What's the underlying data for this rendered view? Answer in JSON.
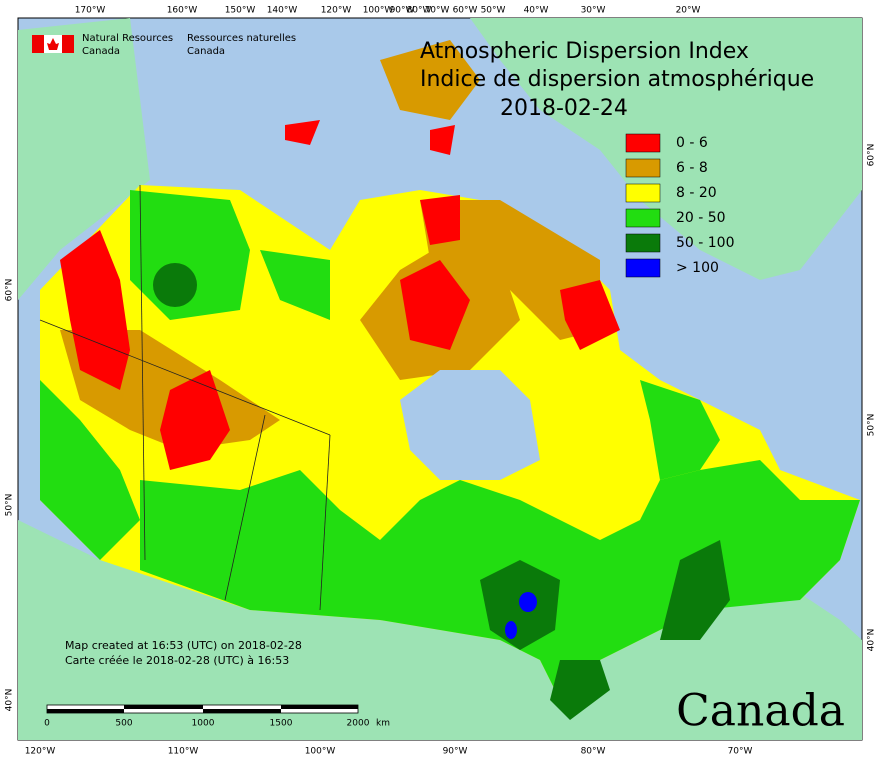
{
  "header": {
    "title": "Atmospheric Dispersion Index",
    "title_fr": "Indice de dispersion atmosphérique",
    "date": "2018-02-24"
  },
  "org": {
    "en_1": "Natural Resources",
    "en_2": "Canada",
    "fr_1": "Ressources naturelles",
    "fr_2": "Canada"
  },
  "legend": [
    {
      "label": "0 - 6",
      "color": "#ff0000"
    },
    {
      "label": "6 - 8",
      "color": "#d89a00"
    },
    {
      "label": "8 - 20",
      "color": "#ffff00"
    },
    {
      "label": "20 - 50",
      "color": "#22dd11"
    },
    {
      "label": "50 - 100",
      "color": "#0a7a0a"
    },
    {
      "label": "> 100",
      "color": "#0000ff"
    }
  ],
  "top_ticks": [
    "170°W",
    "160°W",
    "150°W",
    "140°W",
    "120°W",
    "100°W",
    "90°W",
    "80°W",
    "70°W",
    "60°W",
    "50°W",
    "40°W",
    "30°W",
    "20°W"
  ],
  "bottom_ticks": [
    "120°W",
    "110°W",
    "100°W",
    "90°W",
    "80°W",
    "70°W"
  ],
  "left_ticks": [
    "60°N",
    "50°N",
    "40°N"
  ],
  "right_ticks": [
    "60°N",
    "50°N",
    "40°N"
  ],
  "notes": {
    "created_en": "Map created at 16:53 (UTC) on 2018-02-28",
    "created_fr": "Carte créée le 2018-02-28 (UTC) à 16:53"
  },
  "scale": {
    "labels": [
      "0",
      "500",
      "1000",
      "1500",
      "2000"
    ],
    "unit": "km"
  },
  "wordmark": "Canada"
}
